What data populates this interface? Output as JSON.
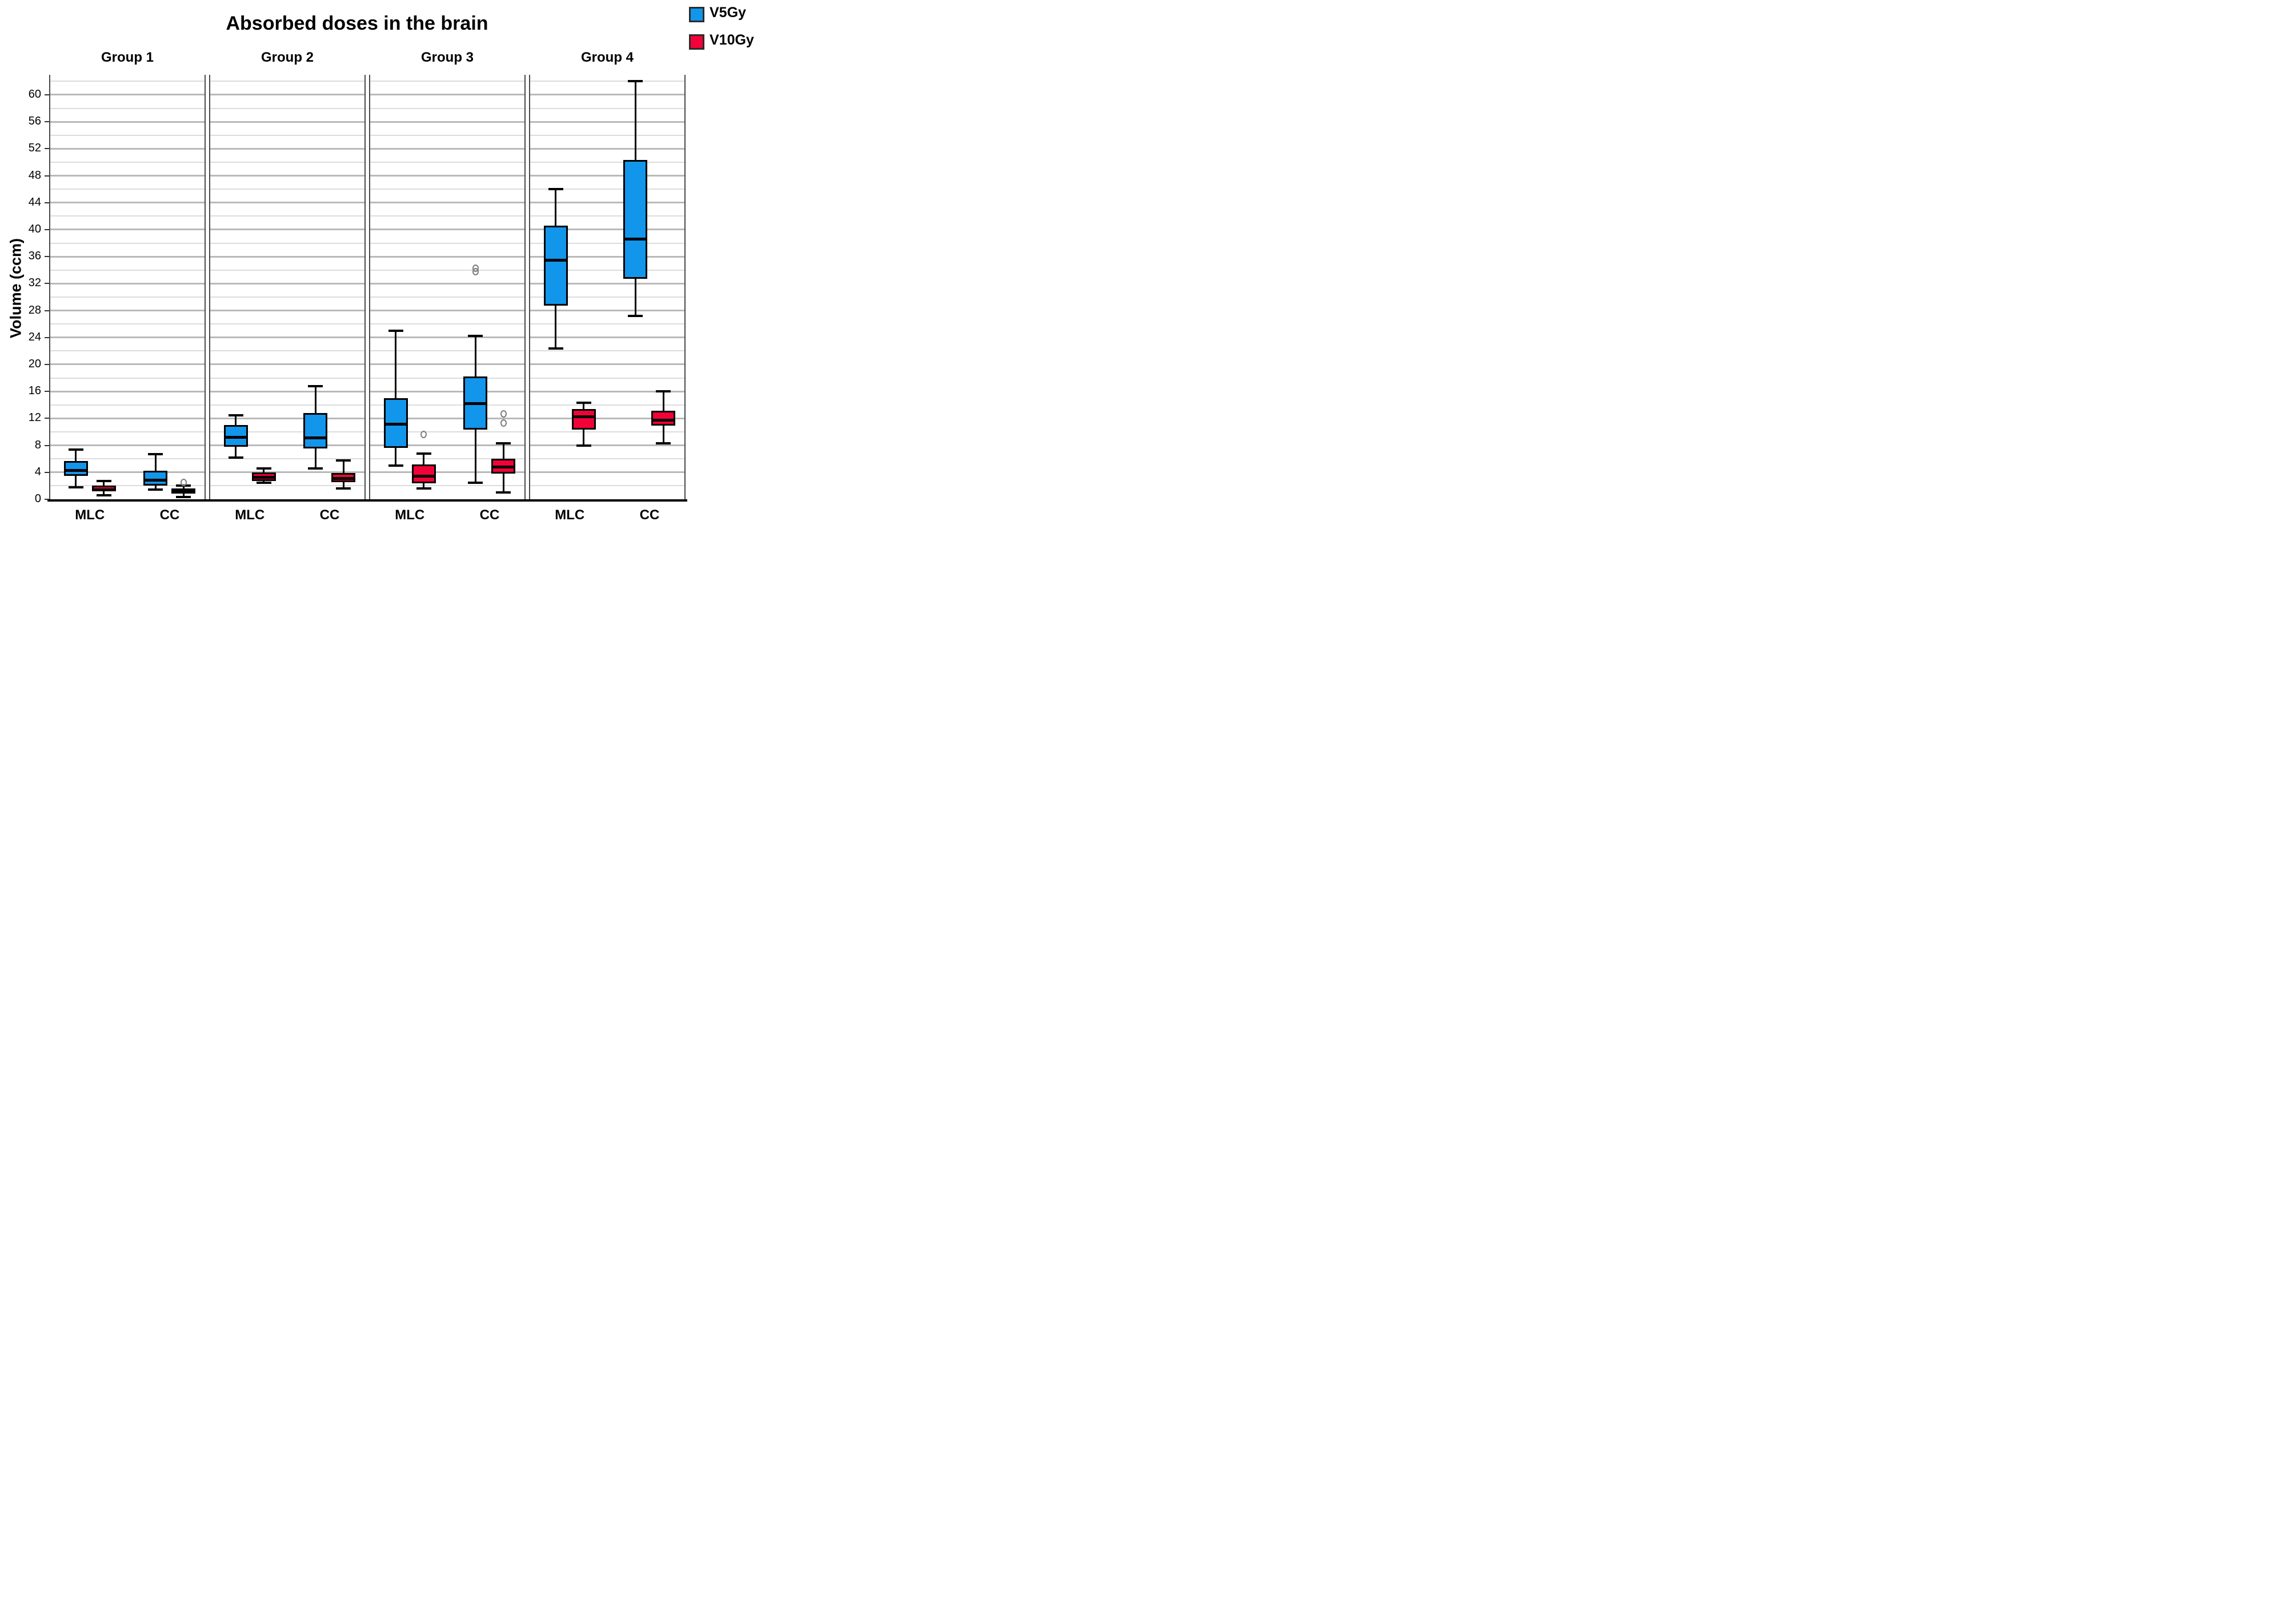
{
  "title": "Absorbed doses in the brain",
  "y_axis_title": "Volume (ccm)",
  "legend": {
    "items": [
      {
        "label": "V5Gy",
        "color": "#1196EC"
      },
      {
        "label": "V10Gy",
        "color": "#F20238"
      }
    ]
  },
  "chart_data": {
    "type": "boxplot",
    "title": "Absorbed doses in the brain",
    "xlabel": "",
    "ylabel": "Volume (ccm)",
    "ylim": [
      0,
      63
    ],
    "ytick_step": 4,
    "minor_grid_step": 2,
    "grid": true,
    "legend_position": "top-right",
    "series_colors": {
      "V5Gy": "#1196EC",
      "V10Gy": "#F20238"
    },
    "categories": [
      "MLC",
      "CC"
    ],
    "groups": [
      {
        "name": "Group 1",
        "boxes": [
          {
            "category": "MLC",
            "series": "V5Gy",
            "min": 1.8,
            "q1": 3.5,
            "med": 4.4,
            "q3": 5.7,
            "max": 7.4,
            "outliers": []
          },
          {
            "category": "MLC",
            "series": "V10Gy",
            "min": 0.6,
            "q1": 1.2,
            "med": 1.5,
            "q3": 2.0,
            "max": 2.7,
            "outliers": []
          },
          {
            "category": "CC",
            "series": "V5Gy",
            "min": 1.4,
            "q1": 2.0,
            "med": 3.0,
            "q3": 4.2,
            "max": 6.7,
            "outliers": []
          },
          {
            "category": "CC",
            "series": "V10Gy",
            "min": 0.3,
            "q1": 0.85,
            "med": 1.35,
            "q3": 1.6,
            "max": 2.0,
            "outliers": [
              2.5
            ]
          }
        ]
      },
      {
        "name": "Group 2",
        "boxes": [
          {
            "category": "MLC",
            "series": "V5Gy",
            "min": 6.2,
            "q1": 7.8,
            "med": 9.3,
            "q3": 11.0,
            "max": 12.5,
            "outliers": []
          },
          {
            "category": "MLC",
            "series": "V10Gy",
            "min": 2.45,
            "q1": 2.75,
            "med": 3.35,
            "q3": 4.0,
            "max": 4.6,
            "outliers": []
          },
          {
            "category": "CC",
            "series": "V5Gy",
            "min": 4.6,
            "q1": 7.5,
            "med": 9.2,
            "q3": 12.8,
            "max": 16.8,
            "outliers": []
          },
          {
            "category": "CC",
            "series": "V10Gy",
            "min": 1.6,
            "q1": 2.5,
            "med": 3.25,
            "q3": 3.9,
            "max": 5.8,
            "outliers": []
          }
        ]
      },
      {
        "name": "Group 3",
        "boxes": [
          {
            "category": "MLC",
            "series": "V5Gy",
            "min": 5.0,
            "q1": 7.6,
            "med": 11.3,
            "q3": 15.0,
            "max": 25.0,
            "outliers": []
          },
          {
            "category": "MLC",
            "series": "V10Gy",
            "min": 1.6,
            "q1": 2.4,
            "med": 3.55,
            "q3": 5.15,
            "max": 6.8,
            "outliers": [
              9.6
            ]
          },
          {
            "category": "CC",
            "series": "V5Gy",
            "min": 2.5,
            "q1": 10.3,
            "med": 14.3,
            "q3": 18.2,
            "max": 24.2,
            "outliers": [
              33.8,
              34.3
            ]
          },
          {
            "category": "CC",
            "series": "V10Gy",
            "min": 1.0,
            "q1": 3.8,
            "med": 4.95,
            "q3": 6.05,
            "max": 8.3,
            "outliers": [
              11.3,
              12.7
            ]
          }
        ]
      },
      {
        "name": "Group 4",
        "boxes": [
          {
            "category": "MLC",
            "series": "V5Gy",
            "min": 22.4,
            "q1": 28.7,
            "med": 35.6,
            "q3": 40.6,
            "max": 46.0,
            "outliers": []
          },
          {
            "category": "MLC",
            "series": "V10Gy",
            "min": 8.0,
            "q1": 10.3,
            "med": 12.4,
            "q3": 13.4,
            "max": 14.3,
            "outliers": []
          },
          {
            "category": "CC",
            "series": "V5Gy",
            "min": 27.2,
            "q1": 32.7,
            "med": 38.7,
            "q3": 50.3,
            "max": 62.0,
            "outliers": []
          },
          {
            "category": "CC",
            "series": "V10Gy",
            "min": 8.3,
            "q1": 10.9,
            "med": 11.9,
            "q3": 13.1,
            "max": 16.0,
            "outliers": []
          }
        ]
      }
    ]
  }
}
